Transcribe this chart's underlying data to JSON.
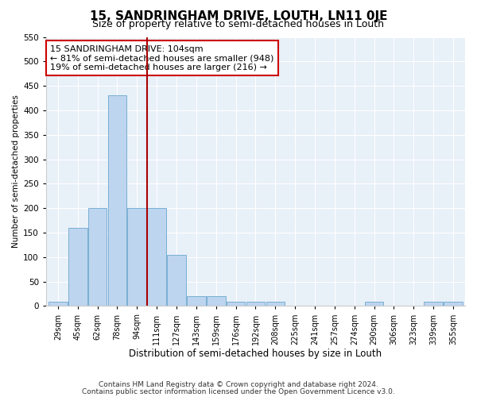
{
  "title": "15, SANDRINGHAM DRIVE, LOUTH, LN11 0JE",
  "subtitle": "Size of property relative to semi-detached houses in Louth",
  "xlabel": "Distribution of semi-detached houses by size in Louth",
  "ylabel": "Number of semi-detached properties",
  "categories": [
    "29sqm",
    "45sqm",
    "62sqm",
    "78sqm",
    "94sqm",
    "111sqm",
    "127sqm",
    "143sqm",
    "159sqm",
    "176sqm",
    "192sqm",
    "208sqm",
    "225sqm",
    "241sqm",
    "257sqm",
    "274sqm",
    "290sqm",
    "306sqm",
    "323sqm",
    "339sqm",
    "355sqm"
  ],
  "values": [
    8,
    160,
    200,
    430,
    200,
    200,
    105,
    20,
    20,
    8,
    8,
    8,
    0,
    0,
    0,
    0,
    8,
    0,
    0,
    8,
    8
  ],
  "bar_color": "#bdd5ee",
  "bar_edge_color": "#7aafd4",
  "property_line_color": "#aa0000",
  "annotation_line1": "15 SANDRINGHAM DRIVE: 104sqm",
  "annotation_line2": "← 81% of semi-detached houses are smaller (948)",
  "annotation_line3": "19% of semi-detached houses are larger (216) →",
  "annotation_box_color": "#ffffff",
  "annotation_box_edge_color": "#cc0000",
  "ylim": [
    0,
    550
  ],
  "yticks": [
    0,
    50,
    100,
    150,
    200,
    250,
    300,
    350,
    400,
    450,
    500,
    550
  ],
  "plot_background_color": "#e8f0f8",
  "footer_line1": "Contains HM Land Registry data © Crown copyright and database right 2024.",
  "footer_line2": "Contains public sector information licensed under the Open Government Licence v3.0.",
  "title_fontsize": 11,
  "subtitle_fontsize": 9,
  "annotation_fontsize": 8,
  "footer_fontsize": 6.5,
  "ylabel_fontsize": 7.5,
  "xlabel_fontsize": 8.5
}
